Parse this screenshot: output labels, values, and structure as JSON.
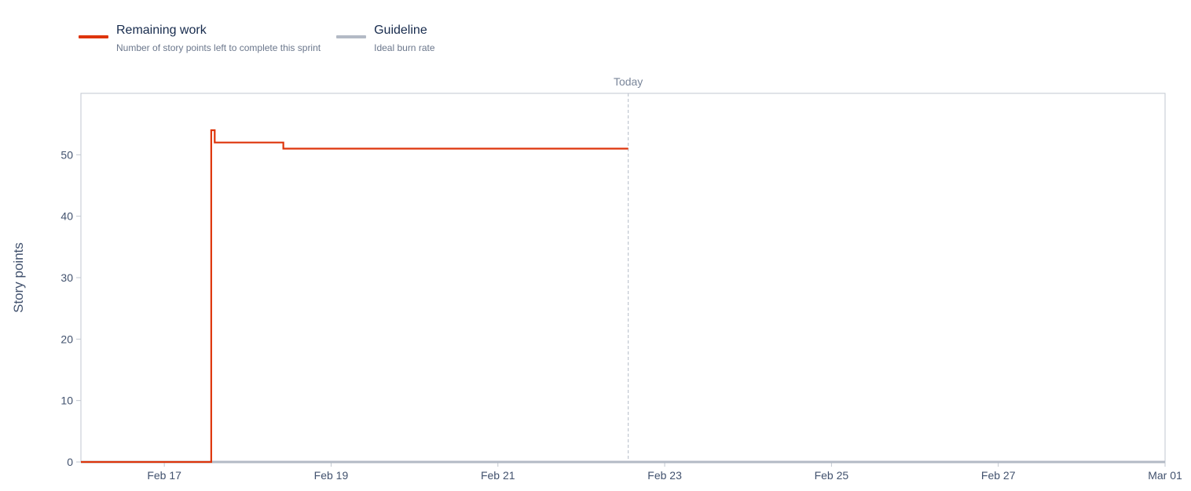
{
  "legend": {
    "remaining": {
      "title": "Remaining work",
      "subtitle": "Number of story points left to complete this sprint",
      "color": "#de350b"
    },
    "guideline": {
      "title": "Guideline",
      "subtitle": "Ideal burn rate",
      "color": "#b3bac5"
    }
  },
  "chart_data": {
    "type": "line",
    "ylabel": "Story points",
    "ylim": [
      0,
      60
    ],
    "yticks": [
      0,
      10,
      20,
      30,
      40,
      50
    ],
    "xlim": [
      "2023-02-16T00:00",
      "2023-03-01T00:00"
    ],
    "xticks": [
      {
        "date": "2023-02-17",
        "label": "Feb 17"
      },
      {
        "date": "2023-02-19",
        "label": "Feb 19"
      },
      {
        "date": "2023-02-21",
        "label": "Feb 21"
      },
      {
        "date": "2023-02-23",
        "label": "Feb 23"
      },
      {
        "date": "2023-02-25",
        "label": "Feb 25"
      },
      {
        "date": "2023-02-27",
        "label": "Feb 27"
      },
      {
        "date": "2023-03-01",
        "label": "Mar 01"
      }
    ],
    "today": {
      "date": "2023-02-22T13:30",
      "label": "Today"
    },
    "series": [
      {
        "name": "Remaining work",
        "step": true,
        "points": [
          {
            "x": "2023-02-16T00:00",
            "y": 0
          },
          {
            "x": "2023-02-17T13:30",
            "y": 54
          },
          {
            "x": "2023-02-17T14:30",
            "y": 52
          },
          {
            "x": "2023-02-18T10:15",
            "y": 51
          },
          {
            "x": "2023-02-22T13:30",
            "y": 51
          }
        ]
      },
      {
        "name": "Guideline",
        "step": false,
        "points": [
          {
            "x": "2023-02-16T00:00",
            "y": 0
          },
          {
            "x": "2023-03-01T00:00",
            "y": 0
          }
        ]
      }
    ],
    "grid": false
  }
}
